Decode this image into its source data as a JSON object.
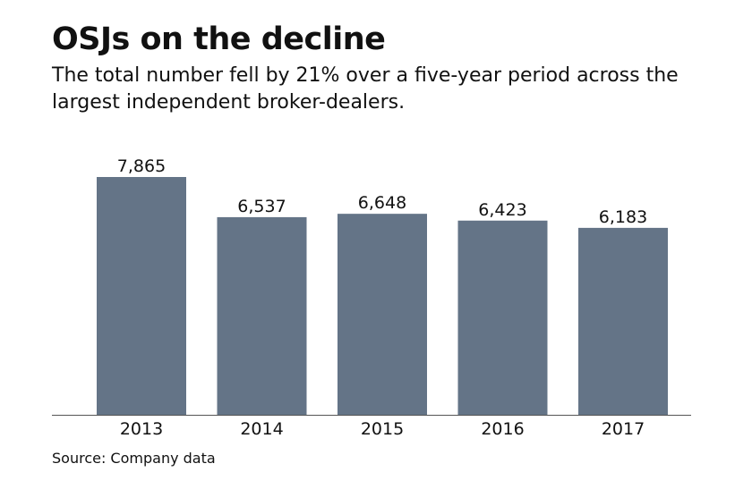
{
  "title": "OSJs on the decline",
  "subtitle": "The total number fell by 21% over a five-year period across the largest independent broker-dealers.",
  "source": "Source: Company data",
  "colors": {
    "bar": "#647487",
    "axis": "#555555",
    "text": "#111111"
  },
  "chart_data": {
    "type": "bar",
    "categories": [
      "2013",
      "2014",
      "2015",
      "2016",
      "2017"
    ],
    "values": [
      7865,
      6537,
      6648,
      6423,
      6183
    ],
    "value_labels": [
      "7,865",
      "6,537",
      "6,648",
      "6,423",
      "6,183"
    ],
    "ylim": [
      0,
      7865
    ],
    "grid": false,
    "legend": "none"
  }
}
